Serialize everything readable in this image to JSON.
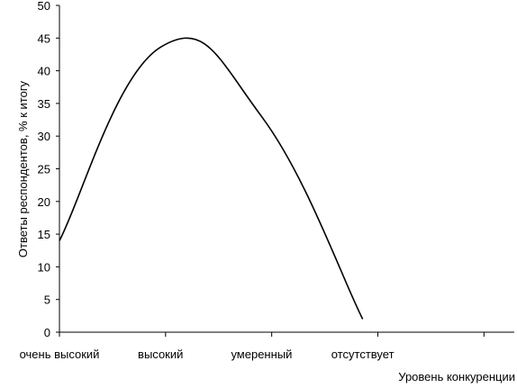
{
  "chart_data": {
    "type": "line",
    "categories": [
      "очень высокий",
      "высокий",
      "умеренный",
      "отсутствует"
    ],
    "series": [
      {
        "values": [
          14,
          43.6,
          33,
          2
        ]
      }
    ],
    "xlabel": "Уровень конкуренции",
    "ylabel": "Ответы респондентов, % к итогу",
    "ylim": [
      0,
      50
    ],
    "yticks": [
      0,
      5,
      10,
      15,
      20,
      25,
      30,
      35,
      40,
      45,
      50
    ],
    "grid": false,
    "legend": "none",
    "line_color": "#000000"
  }
}
